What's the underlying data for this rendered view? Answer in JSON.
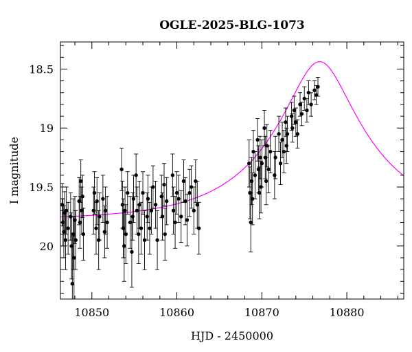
{
  "chart_data": {
    "type": "scatter",
    "title": "OGLE-2025-BLG-1073",
    "xlabel": "HJD - 2450000",
    "ylabel": "I magnitude",
    "xlim": [
      10846.3,
      10886.7
    ],
    "ylim": [
      20.45,
      18.27
    ],
    "y_inverted": true,
    "grid": false,
    "x_major_ticks": [
      10850,
      10860,
      10870,
      10880
    ],
    "x_tick_labels": [
      "10850",
      "10860",
      "10870",
      "10880"
    ],
    "y_major_ticks": [
      18.5,
      19,
      19.5,
      20
    ],
    "y_tick_labels": [
      "18.5",
      "19",
      "19.5",
      "20"
    ],
    "colors": {
      "points": "#000000",
      "model": "#ff00ff",
      "frame": "#000000"
    },
    "series": [
      {
        "type": "scatter",
        "points": [
          [
            10846.5,
            19.65,
            0.18
          ],
          [
            10846.6,
            19.8,
            0.2
          ],
          [
            10846.7,
            19.88,
            0.22
          ],
          [
            10846.8,
            19.72,
            0.18
          ],
          [
            10846.9,
            19.95,
            0.25
          ],
          [
            10847.0,
            19.7,
            0.2
          ],
          [
            10847.2,
            19.85,
            0.22
          ],
          [
            10847.5,
            19.75,
            0.2
          ],
          [
            10847.6,
            20.0,
            0.28
          ],
          [
            10847.7,
            20.32,
            0.4
          ],
          [
            10847.8,
            19.9,
            0.3
          ],
          [
            10847.9,
            20.1,
            0.35
          ],
          [
            10848.0,
            19.78,
            0.2
          ],
          [
            10848.1,
            19.95,
            0.25
          ],
          [
            10848.5,
            19.62,
            0.2
          ],
          [
            10848.6,
            19.8,
            0.22
          ],
          [
            10848.7,
            19.45,
            0.18
          ],
          [
            10848.8,
            19.7,
            0.2
          ],
          [
            10848.9,
            19.58,
            0.18
          ],
          [
            10849.0,
            19.9,
            0.22
          ],
          [
            10850.2,
            19.7,
            0.2
          ],
          [
            10850.3,
            19.55,
            0.18
          ],
          [
            10850.5,
            19.85,
            0.22
          ],
          [
            10850.6,
            19.62,
            0.2
          ],
          [
            10850.8,
            19.95,
            0.25
          ],
          [
            10850.9,
            19.75,
            0.2
          ],
          [
            10851.3,
            19.6,
            0.2
          ],
          [
            10851.5,
            19.88,
            0.22
          ],
          [
            10851.6,
            19.7,
            0.2
          ],
          [
            10851.8,
            19.8,
            0.22
          ],
          [
            10853.5,
            19.35,
            0.18
          ],
          [
            10853.6,
            19.65,
            0.2
          ],
          [
            10853.7,
            19.85,
            0.25
          ],
          [
            10853.8,
            20.0,
            0.3
          ],
          [
            10853.9,
            19.7,
            0.2
          ],
          [
            10854.0,
            19.9,
            0.25
          ],
          [
            10854.2,
            19.55,
            0.18
          ],
          [
            10854.5,
            19.8,
            0.22
          ],
          [
            10854.7,
            20.05,
            0.3
          ],
          [
            10854.8,
            19.75,
            0.2
          ],
          [
            10854.9,
            19.6,
            0.2
          ],
          [
            10855.2,
            19.4,
            0.18
          ],
          [
            10855.3,
            19.7,
            0.2
          ],
          [
            10855.5,
            19.9,
            0.25
          ],
          [
            10855.6,
            19.65,
            0.2
          ],
          [
            10855.8,
            19.85,
            0.22
          ],
          [
            10856.0,
            19.55,
            0.18
          ],
          [
            10856.2,
            19.95,
            0.25
          ],
          [
            10856.5,
            19.75,
            0.2
          ],
          [
            10856.6,
            19.6,
            0.2
          ],
          [
            10856.8,
            19.85,
            0.22
          ],
          [
            10857.0,
            19.7,
            0.2
          ],
          [
            10857.2,
            19.5,
            0.18
          ],
          [
            10857.5,
            19.65,
            0.2
          ],
          [
            10857.7,
            19.95,
            0.25
          ],
          [
            10858.2,
            19.58,
            0.18
          ],
          [
            10858.3,
            19.75,
            0.2
          ],
          [
            10858.5,
            19.48,
            0.18
          ],
          [
            10858.6,
            19.9,
            0.22
          ],
          [
            10858.8,
            19.62,
            0.2
          ],
          [
            10859.5,
            19.4,
            0.18
          ],
          [
            10859.6,
            19.7,
            0.2
          ],
          [
            10859.8,
            19.8,
            0.22
          ],
          [
            10860.0,
            19.55,
            0.18
          ],
          [
            10860.2,
            19.6,
            0.2
          ],
          [
            10860.5,
            19.75,
            0.22
          ],
          [
            10860.8,
            19.45,
            0.18
          ],
          [
            10861.0,
            19.62,
            0.2
          ],
          [
            10861.2,
            19.78,
            0.22
          ],
          [
            10861.5,
            19.55,
            0.2
          ],
          [
            10861.7,
            19.5,
            0.18
          ],
          [
            10862.0,
            19.7,
            0.2
          ],
          [
            10862.2,
            19.45,
            0.18
          ],
          [
            10862.4,
            19.65,
            0.2
          ],
          [
            10862.6,
            19.85,
            0.22
          ],
          [
            10868.5,
            19.3,
            0.2
          ],
          [
            10868.6,
            19.55,
            0.22
          ],
          [
            10868.7,
            19.8,
            0.25
          ],
          [
            10868.8,
            19.45,
            0.2
          ],
          [
            10868.9,
            19.6,
            0.22
          ],
          [
            10869.0,
            19.2,
            0.18
          ],
          [
            10869.2,
            19.4,
            0.2
          ],
          [
            10869.5,
            19.1,
            0.18
          ],
          [
            10869.6,
            19.35,
            0.2
          ],
          [
            10869.7,
            19.55,
            0.22
          ],
          [
            10869.8,
            19.25,
            0.18
          ],
          [
            10869.9,
            19.5,
            0.22
          ],
          [
            10870.0,
            19.3,
            0.2
          ],
          [
            10870.3,
            19.0,
            0.15
          ],
          [
            10870.4,
            19.25,
            0.18
          ],
          [
            10870.5,
            19.45,
            0.2
          ],
          [
            10870.6,
            19.15,
            0.18
          ],
          [
            10870.8,
            19.35,
            0.2
          ],
          [
            10871.0,
            19.2,
            0.18
          ],
          [
            10871.5,
            19.4,
            0.2
          ],
          [
            10871.6,
            19.25,
            0.18
          ],
          [
            10872.0,
            19.05,
            0.15
          ],
          [
            10872.2,
            19.3,
            0.18
          ],
          [
            10872.4,
            19.1,
            0.15
          ],
          [
            10872.6,
            19.2,
            0.18
          ],
          [
            10872.8,
            18.95,
            0.12
          ],
          [
            10872.9,
            19.15,
            0.15
          ],
          [
            10873.0,
            19.05,
            0.15
          ],
          [
            10873.5,
            18.9,
            0.12
          ],
          [
            10873.6,
            19.0,
            0.12
          ],
          [
            10873.8,
            18.85,
            0.12
          ],
          [
            10874.0,
            18.95,
            0.12
          ],
          [
            10874.2,
            19.05,
            0.12
          ],
          [
            10874.5,
            18.8,
            0.1
          ],
          [
            10874.7,
            18.88,
            0.1
          ],
          [
            10875.0,
            18.75,
            0.1
          ],
          [
            10875.3,
            18.85,
            0.1
          ],
          [
            10875.5,
            18.7,
            0.1
          ],
          [
            10875.8,
            18.8,
            0.1
          ],
          [
            10876.2,
            18.68,
            0.08
          ],
          [
            10876.4,
            18.72,
            0.08
          ],
          [
            10876.6,
            18.65,
            0.08
          ]
        ]
      },
      {
        "type": "line",
        "model": {
          "u0": 0.3,
          "t0": 10876.8,
          "tE": 11.5,
          "baseline_mag": 19.78
        }
      }
    ]
  }
}
